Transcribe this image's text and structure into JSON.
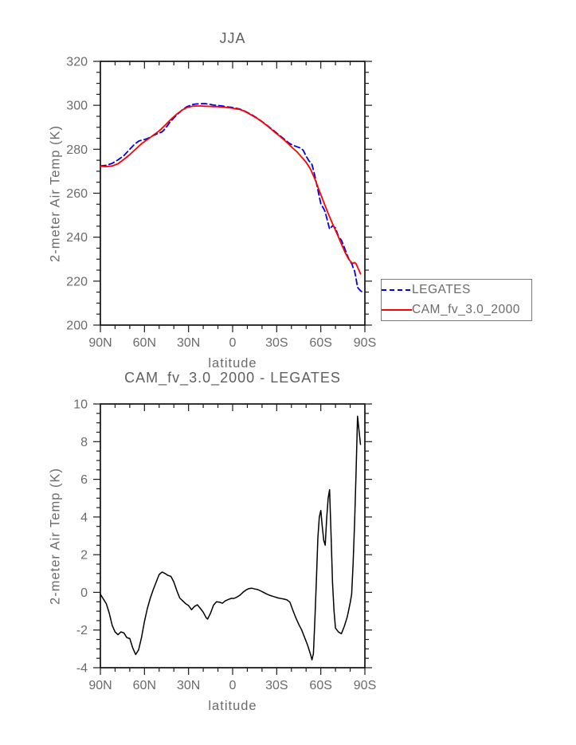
{
  "page": {
    "background": "#ffffff"
  },
  "panel1": {
    "title": "JJA",
    "ylabel": "2-meter Air Temp (K)",
    "xlabel": "latitude"
  },
  "panel2": {
    "title": "CAM_fv_3.0_2000 - LEGATES",
    "ylabel": "2-meter Air Temp (K)",
    "xlabel": "latitude"
  },
  "legend": {
    "items": [
      {
        "label": "LEGATES",
        "color": "#0000ee",
        "dash": "6,4"
      },
      {
        "label": "CAM_fv_3.0_2000",
        "color": "#ff0000",
        "dash": "0"
      }
    ]
  },
  "chart_data": [
    {
      "type": "line",
      "title": "JJA",
      "xlabel": "latitude",
      "ylabel": "2-meter Air Temp (K)",
      "xlim": [
        90,
        -90
      ],
      "ylim": [
        200,
        320
      ],
      "grid": false,
      "legend_position": "outside-right-bottom",
      "x_major_ticks": [
        90,
        60,
        30,
        0,
        -30,
        -60,
        -90
      ],
      "x_tick_labels": [
        "90N",
        "60N",
        "30N",
        "0",
        "30S",
        "60S",
        "90S"
      ],
      "x_minor_step": 10,
      "y_major_ticks": [
        200,
        220,
        240,
        260,
        280,
        300,
        320
      ],
      "y_tick_labels": [
        "200",
        "220",
        "240",
        "260",
        "280",
        "300",
        "320"
      ],
      "y_minor_step": 5,
      "series": [
        {
          "name": "LEGATES",
          "color": "#0000ee",
          "style": "dashed",
          "width": 1.8,
          "points": [
            [
              90,
              272.4
            ],
            [
              86,
              272.7
            ],
            [
              82,
              273.6
            ],
            [
              78,
              275.2
            ],
            [
              74,
              277.1
            ],
            [
              70,
              280.0
            ],
            [
              67,
              282.1
            ],
            [
              64,
              283.7
            ],
            [
              62,
              284.1
            ],
            [
              60,
              284.4
            ],
            [
              58,
              284.9
            ],
            [
              56,
              285.5
            ],
            [
              54,
              286.3
            ],
            [
              51,
              287.1
            ],
            [
              48,
              287.9
            ],
            [
              46,
              289.3
            ],
            [
              43,
              292.0
            ],
            [
              40,
              294.3
            ],
            [
              37,
              296.3
            ],
            [
              34,
              298.1
            ],
            [
              31,
              299.4
            ],
            [
              28,
              300.2
            ],
            [
              25,
              300.6
            ],
            [
              22,
              300.7
            ],
            [
              19,
              300.8
            ],
            [
              16,
              300.5
            ],
            [
              13,
              300.1
            ],
            [
              10,
              299.9
            ],
            [
              7,
              299.7
            ],
            [
              4,
              299.3
            ],
            [
              1,
              299.1
            ],
            [
              -2,
              298.7
            ],
            [
              -5,
              298.3
            ],
            [
              -8,
              297.4
            ],
            [
              -11,
              296.4
            ],
            [
              -14,
              295.3
            ],
            [
              -17,
              294.0
            ],
            [
              -20,
              292.6
            ],
            [
              -23,
              291.1
            ],
            [
              -26,
              289.5
            ],
            [
              -29,
              287.9
            ],
            [
              -32,
              286.3
            ],
            [
              -35,
              284.7
            ],
            [
              -38,
              283.0
            ],
            [
              -41,
              281.8
            ],
            [
              -44,
              281.1
            ],
            [
              -46,
              280.6
            ],
            [
              -48,
              279.6
            ],
            [
              -50,
              276.9
            ],
            [
              -52,
              274.7
            ],
            [
              -54,
              273.1
            ],
            [
              -56,
              267.8
            ],
            [
              -58,
              261.5
            ],
            [
              -60,
              255.2
            ],
            [
              -62,
              252.9
            ],
            [
              -63,
              251.5
            ],
            [
              -64,
              248.9
            ],
            [
              -66,
              243.7
            ],
            [
              -68,
              245.2
            ],
            [
              -70,
              244.2
            ],
            [
              -72,
              240.3
            ],
            [
              -74,
              238.7
            ],
            [
              -76,
              235.3
            ],
            [
              -78,
              231.8
            ],
            [
              -80,
              228.7
            ],
            [
              -81,
              228.1
            ],
            [
              -82,
              226.2
            ],
            [
              -83,
              224.6
            ],
            [
              -84,
              221.2
            ],
            [
              -85,
              217.2
            ],
            [
              -86,
              216.4
            ],
            [
              -87,
              215.6
            ],
            [
              -88,
              215.2
            ]
          ]
        },
        {
          "name": "CAM_fv_3.0_2000",
          "color": "#ff0000",
          "style": "solid",
          "width": 1.8,
          "points": [
            [
              90,
              272.3
            ],
            [
              86,
              272.1
            ],
            [
              82,
              272.4
            ],
            [
              78,
              273.4
            ],
            [
              74,
              275.4
            ],
            [
              70,
              277.6
            ],
            [
              66,
              280.1
            ],
            [
              62,
              282.5
            ],
            [
              58,
              284.4
            ],
            [
              54,
              286.4
            ],
            [
              50,
              288.4
            ],
            [
              46,
              290.9
            ],
            [
              42,
              293.6
            ],
            [
              38,
              296.0
            ],
            [
              34,
              298.0
            ],
            [
              31,
              299.0
            ],
            [
              28,
              299.5
            ],
            [
              25,
              299.7
            ],
            [
              22,
              299.7
            ],
            [
              19,
              299.6
            ],
            [
              16,
              299.5
            ],
            [
              13,
              299.4
            ],
            [
              10,
              299.4
            ],
            [
              7,
              299.2
            ],
            [
              4,
              299.0
            ],
            [
              1,
              298.8
            ],
            [
              -2,
              298.4
            ],
            [
              -5,
              298.1
            ],
            [
              -8,
              297.3
            ],
            [
              -11,
              296.2
            ],
            [
              -14,
              295.1
            ],
            [
              -17,
              293.9
            ],
            [
              -20,
              292.5
            ],
            [
              -23,
              291.0
            ],
            [
              -26,
              289.3
            ],
            [
              -29,
              287.6
            ],
            [
              -32,
              286.0
            ],
            [
              -35,
              284.3
            ],
            [
              -38,
              282.4
            ],
            [
              -41,
              280.5
            ],
            [
              -44,
              278.7
            ],
            [
              -47,
              276.4
            ],
            [
              -50,
              274.1
            ],
            [
              -53,
              270.9
            ],
            [
              -56,
              266.4
            ],
            [
              -59,
              261.1
            ],
            [
              -62,
              255.9
            ],
            [
              -65,
              250.8
            ],
            [
              -68,
              246.1
            ],
            [
              -71,
              241.6
            ],
            [
              -74,
              236.9
            ],
            [
              -77,
              232.4
            ],
            [
              -79,
              230.0
            ],
            [
              -81,
              228.4
            ],
            [
              -82,
              228.1
            ],
            [
              -83,
              228.5
            ],
            [
              -84,
              227.9
            ],
            [
              -85,
              226.4
            ],
            [
              -86,
              224.9
            ],
            [
              -87,
              223.3
            ]
          ]
        }
      ]
    },
    {
      "type": "line",
      "title": "CAM_fv_3.0_2000 - LEGATES",
      "xlabel": "latitude",
      "ylabel": "2-meter Air Temp (K)",
      "xlim": [
        90,
        -90
      ],
      "ylim": [
        -4,
        10
      ],
      "grid": false,
      "x_major_ticks": [
        90,
        60,
        30,
        0,
        -30,
        -60,
        -90
      ],
      "x_tick_labels": [
        "90N",
        "60N",
        "30N",
        "0",
        "30S",
        "60S",
        "90S"
      ],
      "x_minor_step": 10,
      "y_major_ticks": [
        -4,
        -2,
        0,
        2,
        4,
        6,
        8,
        10
      ],
      "y_tick_labels": [
        "-4",
        "-2",
        "0",
        "2",
        "4",
        "6",
        "8",
        "10"
      ],
      "y_minor_step": 0.5,
      "series": [
        {
          "name": "CAM_fv_3.0_2000 - LEGATES",
          "color": "#000000",
          "style": "solid",
          "width": 1.5,
          "points": [
            [
              90,
              -0.1
            ],
            [
              88,
              -0.35
            ],
            [
              86,
              -0.6
            ],
            [
              84,
              -1.1
            ],
            [
              82,
              -1.75
            ],
            [
              80,
              -2.1
            ],
            [
              78,
              -2.25
            ],
            [
              76,
              -2.1
            ],
            [
              74,
              -2.15
            ],
            [
              72,
              -2.4
            ],
            [
              70,
              -2.45
            ],
            [
              68,
              -2.95
            ],
            [
              66,
              -3.3
            ],
            [
              64,
              -3.05
            ],
            [
              62,
              -2.4
            ],
            [
              60,
              -1.55
            ],
            [
              58,
              -0.85
            ],
            [
              56,
              -0.3
            ],
            [
              54,
              0.15
            ],
            [
              52,
              0.55
            ],
            [
              50,
              0.95
            ],
            [
              48,
              1.08
            ],
            [
              46,
              1.0
            ],
            [
              44,
              0.9
            ],
            [
              42,
              0.85
            ],
            [
              40,
              0.55
            ],
            [
              38,
              0.1
            ],
            [
              36,
              -0.3
            ],
            [
              34,
              -0.45
            ],
            [
              32,
              -0.6
            ],
            [
              30,
              -0.7
            ],
            [
              28,
              -0.92
            ],
            [
              26,
              -0.75
            ],
            [
              24,
              -0.66
            ],
            [
              22,
              -0.85
            ],
            [
              20,
              -1.05
            ],
            [
              18,
              -1.35
            ],
            [
              17,
              -1.42
            ],
            [
              15,
              -1.1
            ],
            [
              13,
              -0.68
            ],
            [
              11,
              -0.5
            ],
            [
              9,
              -0.52
            ],
            [
              7,
              -0.58
            ],
            [
              5,
              -0.45
            ],
            [
              3,
              -0.38
            ],
            [
              1,
              -0.32
            ],
            [
              -1,
              -0.32
            ],
            [
              -3,
              -0.25
            ],
            [
              -5,
              -0.15
            ],
            [
              -7,
              0.0
            ],
            [
              -9,
              0.12
            ],
            [
              -11,
              0.2
            ],
            [
              -13,
              0.22
            ],
            [
              -15,
              0.18
            ],
            [
              -17,
              0.15
            ],
            [
              -19,
              0.08
            ],
            [
              -21,
              0.0
            ],
            [
              -23,
              -0.08
            ],
            [
              -25,
              -0.15
            ],
            [
              -27,
              -0.2
            ],
            [
              -29,
              -0.25
            ],
            [
              -31,
              -0.3
            ],
            [
              -33,
              -0.33
            ],
            [
              -35,
              -0.36
            ],
            [
              -37,
              -0.4
            ],
            [
              -39,
              -0.52
            ],
            [
              -41,
              -0.95
            ],
            [
              -43,
              -1.35
            ],
            [
              -45,
              -1.7
            ],
            [
              -47,
              -2.0
            ],
            [
              -49,
              -2.4
            ],
            [
              -51,
              -2.8
            ],
            [
              -53,
              -3.3
            ],
            [
              -54,
              -3.58
            ],
            [
              -55,
              -3.25
            ],
            [
              -56,
              -1.4
            ],
            [
              -57,
              0.6
            ],
            [
              -58,
              2.9
            ],
            [
              -59,
              4.0
            ],
            [
              -60,
              4.35
            ],
            [
              -61,
              3.5
            ],
            [
              -62,
              2.75
            ],
            [
              -63,
              2.5
            ],
            [
              -64,
              3.9
            ],
            [
              -65,
              5.0
            ],
            [
              -66,
              5.45
            ],
            [
              -67,
              3.0
            ],
            [
              -68,
              0.5
            ],
            [
              -69,
              -1.0
            ],
            [
              -70,
              -1.9
            ],
            [
              -72,
              -2.1
            ],
            [
              -74,
              -2.2
            ],
            [
              -76,
              -1.8
            ],
            [
              -78,
              -1.3
            ],
            [
              -80,
              -0.55
            ],
            [
              -81,
              -0.1
            ],
            [
              -82,
              1.5
            ],
            [
              -83,
              3.7
            ],
            [
              -84,
              6.3
            ],
            [
              -85,
              9.35
            ],
            [
              -86,
              8.6
            ],
            [
              -87,
              7.85
            ]
          ]
        }
      ]
    }
  ]
}
